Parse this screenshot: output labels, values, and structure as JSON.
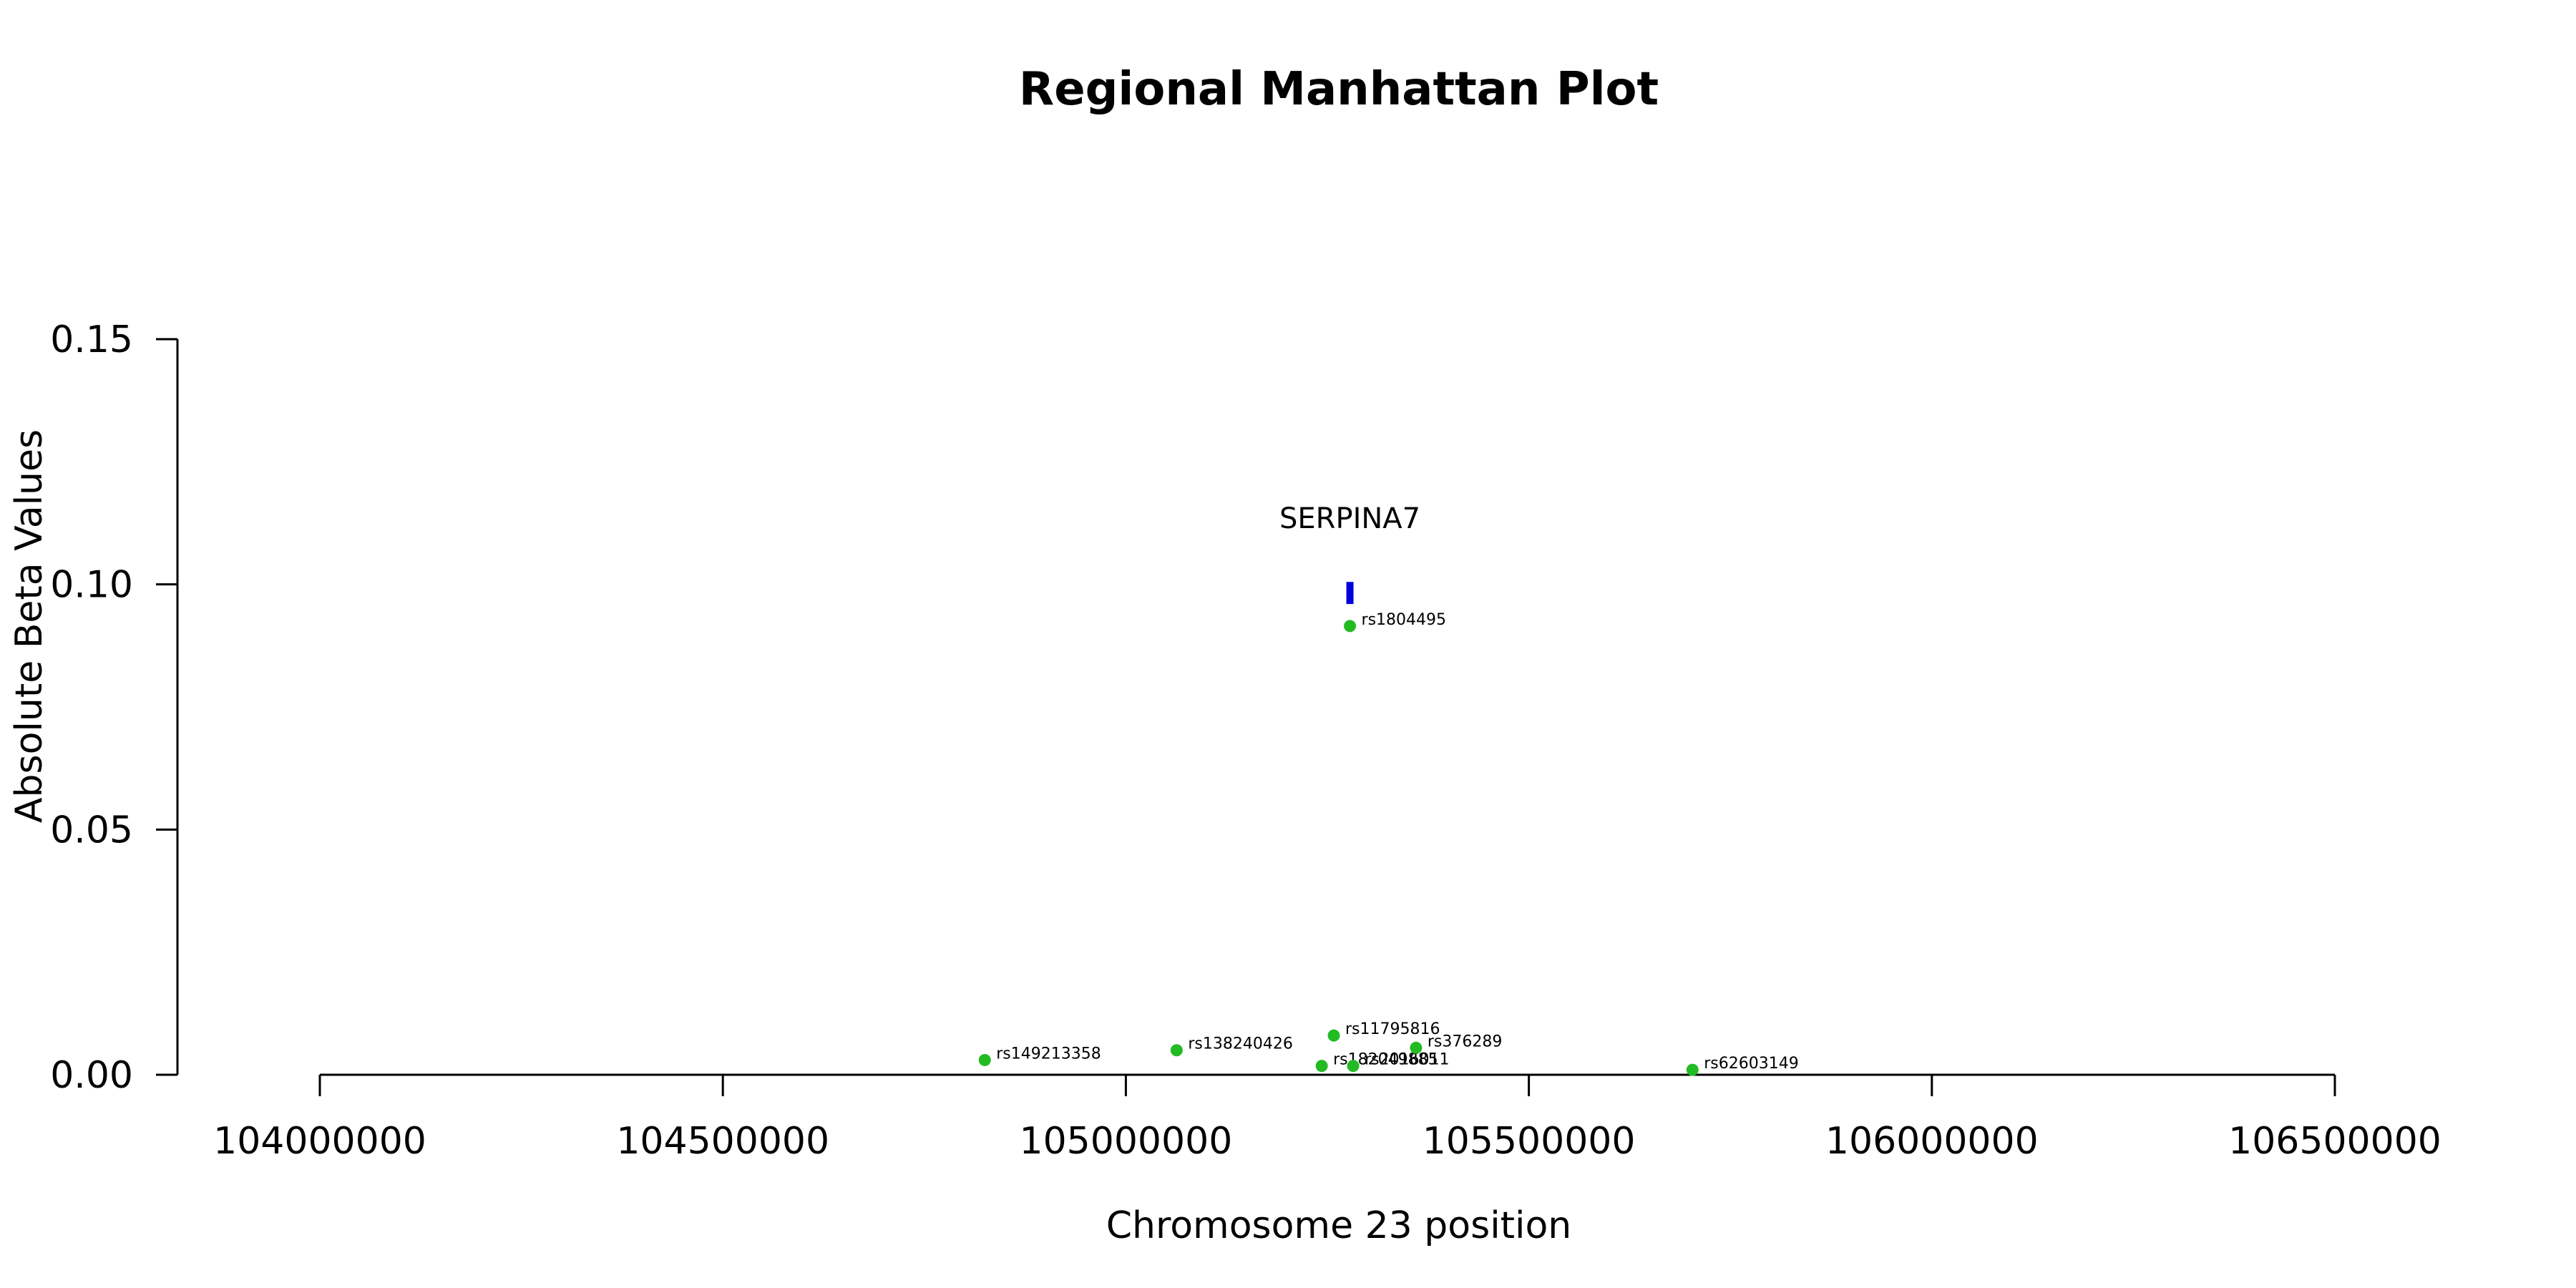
{
  "chart_data": {
    "type": "scatter",
    "title": "Regional Manhattan Plot",
    "xlabel": "Chromosome 23 position",
    "ylabel": "Absolute Beta Values",
    "xlim": [
      104000000,
      106500000
    ],
    "ylim": [
      0,
      0.15
    ],
    "x_ticks": [
      104000000,
      104500000,
      105000000,
      105500000,
      106000000,
      106500000
    ],
    "x_tick_labels": [
      "104000000",
      "104500000",
      "105000000",
      "105500000",
      "106000000",
      "106500000"
    ],
    "y_ticks": [
      0,
      0.05,
      0.1,
      0.15
    ],
    "y_tick_labels": [
      "0.00",
      "0.05",
      "0.10",
      "0.15"
    ],
    "grid": false,
    "point_color": "#22bb22",
    "gene_color": "#0000dd",
    "points": [
      {
        "label": "rs149213358",
        "x": 104825000,
        "y": 0.003
      },
      {
        "label": "rs138240426",
        "x": 105063000,
        "y": 0.005
      },
      {
        "label": "rs11795816",
        "x": 105258000,
        "y": 0.008
      },
      {
        "label": "rs182049885",
        "x": 105243000,
        "y": 0.0018
      },
      {
        "label": "rs2016011",
        "x": 105282000,
        "y": 0.0018
      },
      {
        "label": "rs376289",
        "x": 105360000,
        "y": 0.0055
      },
      {
        "label": "rs62603149",
        "x": 105703000,
        "y": 0.001
      },
      {
        "label": "rs1804495",
        "x": 105278000,
        "y": 0.0915
      }
    ],
    "genes": [
      {
        "name": "SERPINA7",
        "x": 105278000,
        "y_low": 0.096,
        "y_high": 0.1005
      }
    ]
  }
}
